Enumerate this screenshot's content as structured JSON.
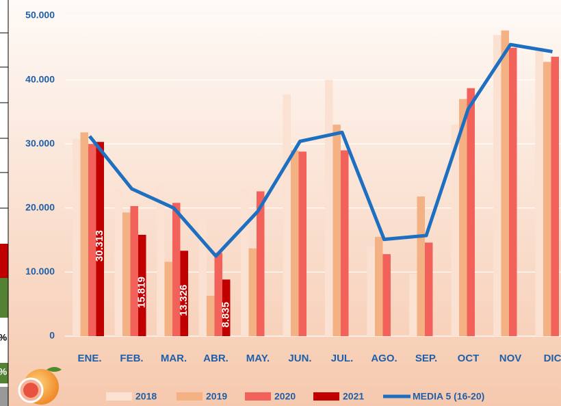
{
  "chart_data": {
    "type": "bar_line",
    "categories": [
      "ENE.",
      "FEB.",
      "MAR.",
      "ABR.",
      "MAY.",
      "JUN.",
      "JUL.",
      "AGO.",
      "SEP.",
      "OCT",
      "NOV",
      "DIC"
    ],
    "series": [
      {
        "name": "2018",
        "color": "#fbe1d2",
        "values": [
          30800,
          22800,
          23700,
          18200,
          23000,
          37700,
          40000,
          14000,
          9700,
          33000,
          47000,
          45000
        ]
      },
      {
        "name": "2019",
        "color": "#f4b183",
        "values": [
          31800,
          19300,
          11600,
          6300,
          13700,
          29000,
          33000,
          15500,
          21800,
          37000,
          47700,
          42800
        ]
      },
      {
        "name": "2020",
        "color": "#f2615a",
        "values": [
          30000,
          20300,
          20800,
          13000,
          22600,
          28800,
          29000,
          12800,
          14600,
          38700,
          45000,
          43600
        ]
      },
      {
        "name": "2021",
        "color": "#c00000",
        "values": [
          30313,
          15819,
          13326,
          8835,
          null,
          null,
          null,
          null,
          null,
          null,
          null,
          null
        ],
        "value_labels": [
          "30.313",
          "15.819",
          "13.326",
          "8.835",
          null,
          null,
          null,
          null,
          null,
          null,
          null,
          null
        ]
      },
      {
        "name": "MEDIA 5 (16-20)",
        "color": "#1f6fc1",
        "kind": "line",
        "values": [
          31200,
          23000,
          20000,
          12500,
          19500,
          30400,
          31800,
          15100,
          15700,
          35500,
          45500,
          44400
        ]
      }
    ],
    "ylim": [
      0,
      50000
    ],
    "yticks": [
      {
        "value": 0,
        "label": "0"
      },
      {
        "value": 10000,
        "label": "10.000"
      },
      {
        "value": 20000,
        "label": "20.000"
      },
      {
        "value": 30000,
        "label": "30.000"
      },
      {
        "value": 40000,
        "label": "40.000"
      },
      {
        "value": 50000,
        "label": "50.000"
      }
    ],
    "grid": true,
    "legend": "bottom"
  },
  "side_labels": [
    "%",
    "%"
  ]
}
